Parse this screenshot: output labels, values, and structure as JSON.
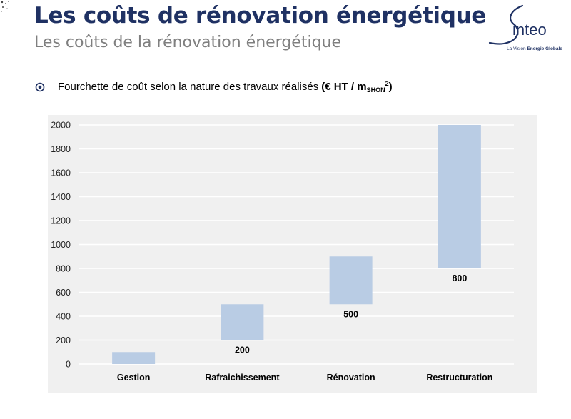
{
  "header": {
    "title": "Les coûts de rénovation énergétique",
    "subtitle": "Les coûts de la rénovation énergétique"
  },
  "logo": {
    "name": "inteo",
    "tagline_prefix": "La Vision ",
    "tagline_bold": "Energie Globale",
    "color": "#1f3163"
  },
  "bullet": {
    "text": "Fourchette de coût selon la nature des travaux réalisés",
    "unit_prefix": "(€ HT / m",
    "unit_sub": "SHON",
    "unit_sup": "2",
    "unit_suffix": ")"
  },
  "chart_data": {
    "type": "bar",
    "subtype": "floating-range",
    "categories": [
      "Gestion",
      "Rafraichissement",
      "Rénovation",
      "Restructuration"
    ],
    "series": [
      {
        "ranges": [
          [
            0,
            100
          ],
          [
            200,
            500
          ],
          [
            500,
            900
          ],
          [
            800,
            2000
          ]
        ],
        "labels": [
          "",
          "200",
          "500",
          "800"
        ]
      }
    ],
    "ylim": [
      0,
      2000
    ],
    "yticks": [
      0,
      200,
      400,
      600,
      800,
      1000,
      1200,
      1400,
      1600,
      1800,
      2000
    ],
    "grid": true,
    "legend": "none",
    "bar_color": "#b9cce4",
    "background_color": "#f0f0f0",
    "gridline_color": "#ffffff"
  }
}
